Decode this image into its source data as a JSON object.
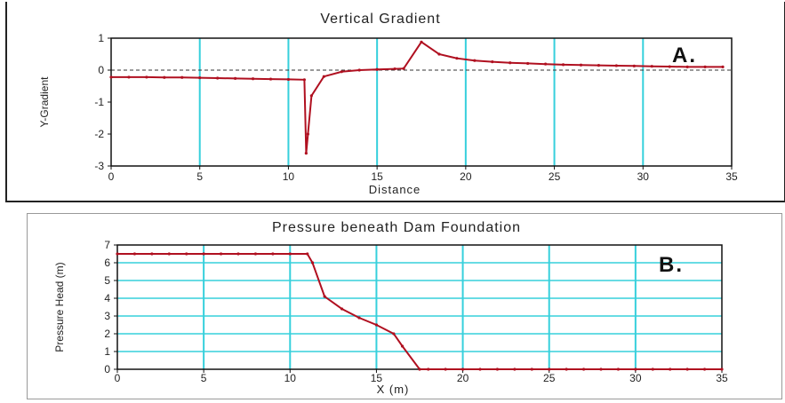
{
  "chart_data": [
    {
      "id": "a",
      "type": "line",
      "title": "Vertical Gradient",
      "xlabel": "Distance",
      "ylabel": "Y-Gradient",
      "panel_label": "A.",
      "xlim": [
        0,
        35
      ],
      "ylim": [
        -3,
        1
      ],
      "xticks": [
        "0",
        "5",
        "10",
        "15",
        "20",
        "25",
        "30",
        "35"
      ],
      "yticks": [
        "1",
        "0",
        "-1",
        "-2",
        "-3"
      ],
      "grid": "vertical",
      "reference_line": 0,
      "series": [
        {
          "x": [
            0,
            1,
            2,
            3,
            4,
            5,
            6,
            7,
            8,
            9,
            10,
            10.9,
            11.0,
            11.1,
            11.3,
            12,
            13,
            14,
            15,
            16,
            16.5,
            17.5,
            18.5,
            19.5,
            20.5,
            21.5,
            22.5,
            23.5,
            24.5,
            25.5,
            26.5,
            27.5,
            28.5,
            29.5,
            30.5,
            31.5,
            32.5,
            33.5,
            34.5
          ],
          "y": [
            -0.22,
            -0.22,
            -0.22,
            -0.23,
            -0.23,
            -0.24,
            -0.25,
            -0.26,
            -0.27,
            -0.28,
            -0.29,
            -0.3,
            -2.6,
            -2.0,
            -0.8,
            -0.2,
            -0.05,
            0.0,
            0.02,
            0.04,
            0.05,
            0.88,
            0.5,
            0.37,
            0.3,
            0.26,
            0.23,
            0.21,
            0.19,
            0.17,
            0.16,
            0.15,
            0.14,
            0.13,
            0.12,
            0.11,
            0.1,
            0.1,
            0.1
          ]
        }
      ],
      "colors": {
        "line": "#b01020",
        "grid": "#36d0dc",
        "reference": "#333333"
      }
    },
    {
      "id": "b",
      "type": "line",
      "title": "Pressure beneath Dam Foundation",
      "xlabel": "X (m)",
      "ylabel": "Pressure Head (m)",
      "panel_label": "B.",
      "xlim": [
        0,
        35
      ],
      "ylim": [
        0,
        7
      ],
      "xticks": [
        "0",
        "5",
        "10",
        "15",
        "20",
        "25",
        "30",
        "35"
      ],
      "yticks": [
        "7",
        "6",
        "5",
        "4",
        "3",
        "2",
        "1",
        "0"
      ],
      "grid": "both",
      "series": [
        {
          "x": [
            0,
            1,
            2,
            3,
            4,
            5,
            6,
            7,
            8,
            9,
            10,
            11,
            11.3,
            12,
            13,
            14,
            15,
            16,
            16.5,
            17.5,
            18,
            19,
            20,
            21,
            22,
            23,
            24,
            25,
            26,
            27,
            28,
            29,
            30,
            31,
            32,
            33,
            34,
            35
          ],
          "y": [
            6.5,
            6.5,
            6.5,
            6.5,
            6.5,
            6.5,
            6.5,
            6.5,
            6.5,
            6.5,
            6.5,
            6.5,
            6.0,
            4.1,
            3.4,
            2.9,
            2.5,
            2.0,
            1.3,
            0,
            0,
            0,
            0,
            0,
            0,
            0,
            0,
            0,
            0,
            0,
            0,
            0,
            0,
            0,
            0,
            0,
            0,
            0
          ]
        }
      ],
      "colors": {
        "line": "#b01020",
        "grid": "#36d0dc"
      }
    }
  ]
}
